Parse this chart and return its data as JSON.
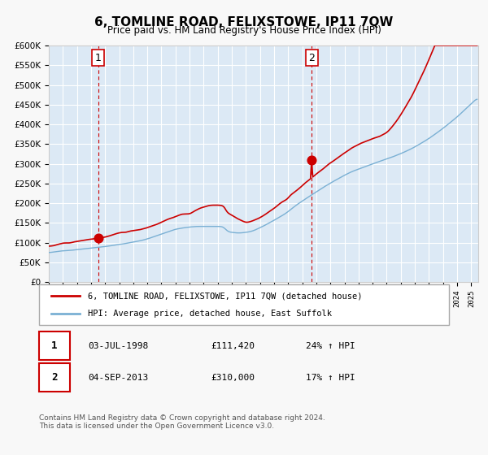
{
  "title": "6, TOMLINE ROAD, FELIXSTOWE, IP11 7QW",
  "subtitle": "Price paid vs. HM Land Registry's House Price Index (HPI)",
  "ylim": [
    0,
    600000
  ],
  "yticks": [
    0,
    50000,
    100000,
    150000,
    200000,
    250000,
    300000,
    350000,
    400000,
    450000,
    500000,
    550000,
    600000
  ],
  "xmin": 1995.0,
  "xmax": 2025.5,
  "background_color": "#dce9f5",
  "plot_bg_color": "#dce9f5",
  "grid_color": "#ffffff",
  "red_line_color": "#cc0000",
  "blue_line_color": "#7ab0d4",
  "sale1_x": 1998.5,
  "sale1_y": 111420,
  "sale1_label": "1",
  "sale2_x": 2013.67,
  "sale2_y": 310000,
  "sale2_label": "2",
  "legend_red_label": "6, TOMLINE ROAD, FELIXSTOWE, IP11 7QW (detached house)",
  "legend_blue_label": "HPI: Average price, detached house, East Suffolk",
  "table_row1_num": "1",
  "table_row1_date": "03-JUL-1998",
  "table_row1_price": "£111,420",
  "table_row1_hpi": "24% ↑ HPI",
  "table_row2_num": "2",
  "table_row2_date": "04-SEP-2013",
  "table_row2_price": "£310,000",
  "table_row2_hpi": "17% ↑ HPI",
  "footer": "Contains HM Land Registry data © Crown copyright and database right 2024.\nThis data is licensed under the Open Government Licence v3.0.",
  "vline1_x": 1998.5,
  "vline2_x": 2013.67,
  "vline_color": "#cc0000"
}
